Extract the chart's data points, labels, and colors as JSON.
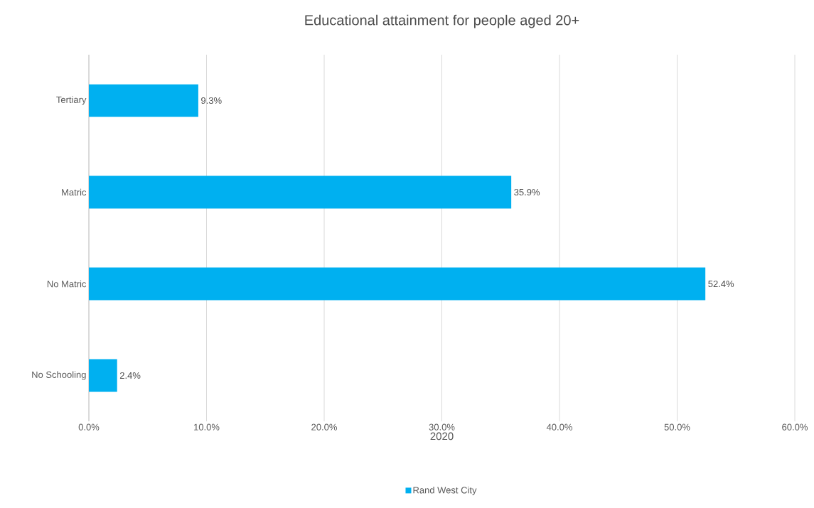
{
  "chart_data": {
    "type": "bar",
    "orientation": "horizontal",
    "title": "Educational attainment for people aged 20+",
    "xlabel": "2020",
    "categories": [
      "Tertiary",
      "Matric",
      "No Matric",
      "No Schooling"
    ],
    "series": [
      {
        "name": "Rand West City",
        "color": "#00b0f0",
        "values": [
          9.3,
          35.9,
          52.4,
          2.4
        ],
        "value_labels": [
          "9.3%",
          "35.9%",
          "52.4%",
          "2.4%"
        ]
      }
    ],
    "xlim": [
      0,
      60
    ],
    "xticks": [
      {
        "value": 0,
        "label": "0.0%"
      },
      {
        "value": 10,
        "label": "10.0%"
      },
      {
        "value": 20,
        "label": "20.0%"
      },
      {
        "value": 30,
        "label": "30.0%"
      },
      {
        "value": 40,
        "label": "40.0%"
      },
      {
        "value": 50,
        "label": "50.0%"
      },
      {
        "value": 60,
        "label": "60.0%"
      }
    ],
    "grid": "x",
    "legend": "bottom"
  }
}
